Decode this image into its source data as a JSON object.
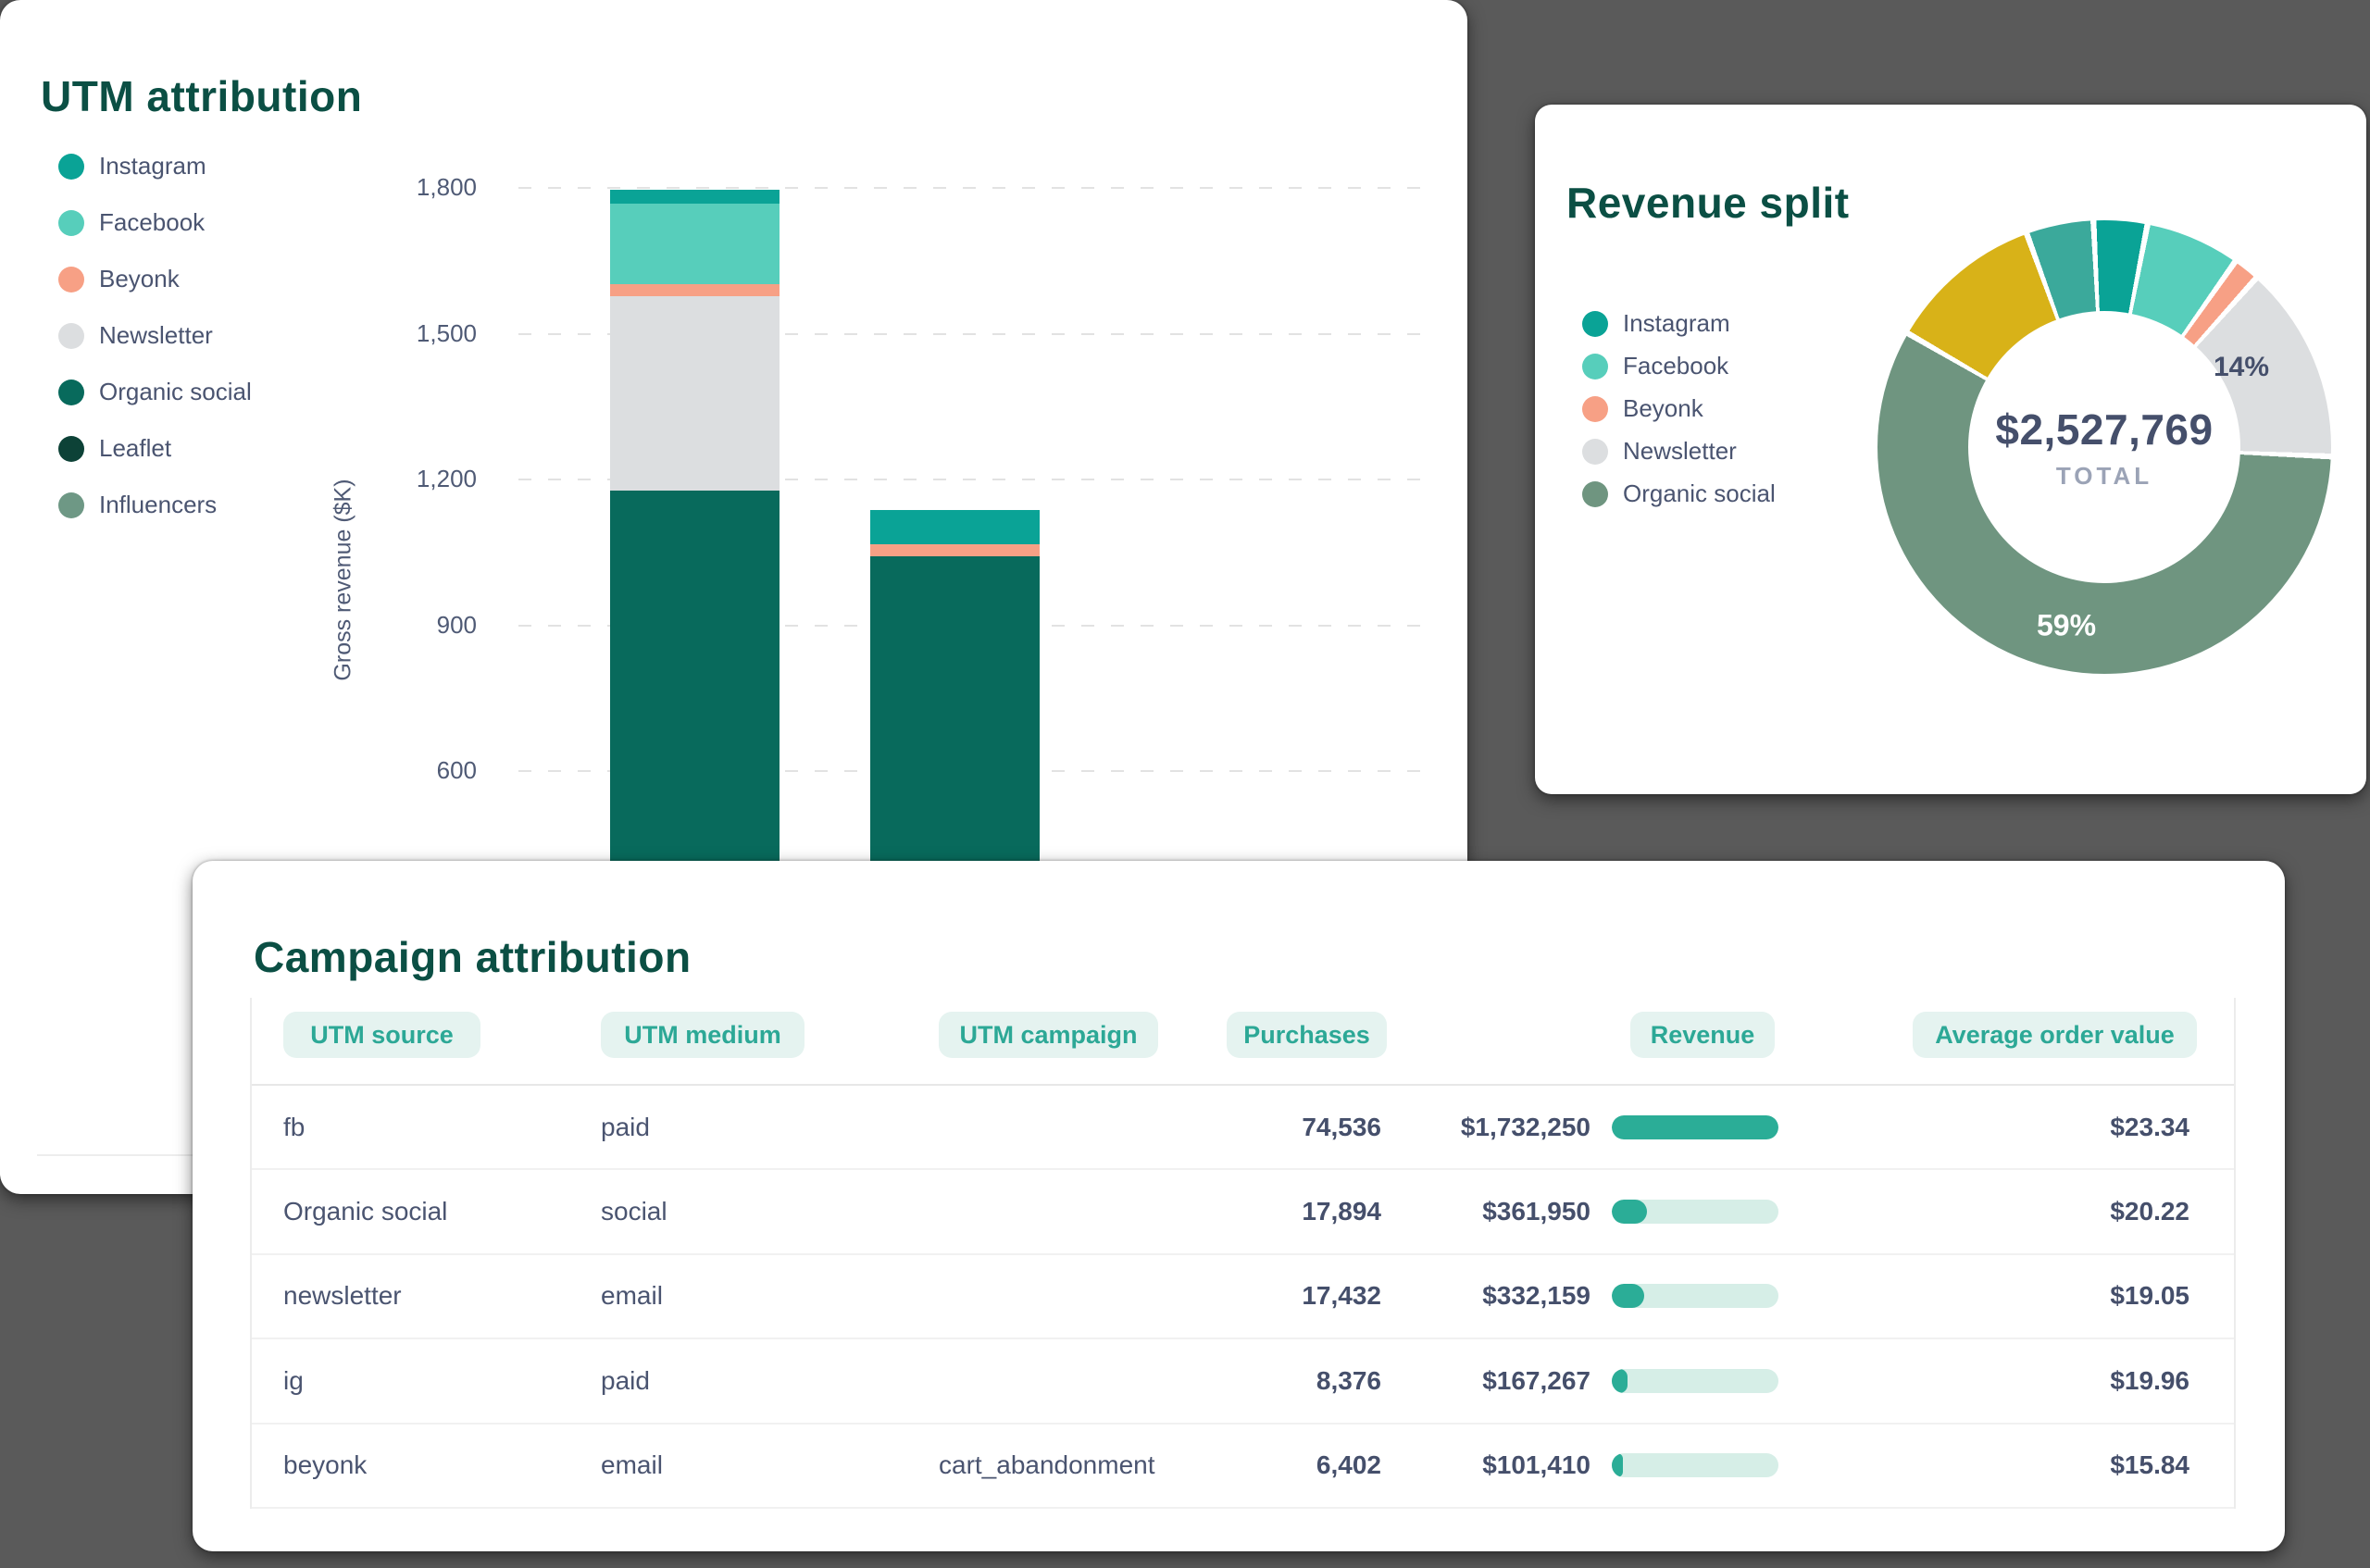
{
  "page": {
    "background_color": "#5A5A5A",
    "card_color": "#FFFFFF",
    "title_color": "#0B4F44",
    "text_color": "#4A5470"
  },
  "utm_card": {
    "title": "UTM attribution",
    "y_axis_label": "Gross revenue ($K)",
    "legend": [
      {
        "label": "Instagram",
        "color": "#0AA396"
      },
      {
        "label": "Facebook",
        "color": "#57CEBB"
      },
      {
        "label": "Beyonk",
        "color": "#F7A085"
      },
      {
        "label": "Newsletter",
        "color": "#DCDEE0"
      },
      {
        "label": "Organic social",
        "color": "#086A5C"
      },
      {
        "label": "Leaflet",
        "color": "#0D4237"
      },
      {
        "label": "Influencers",
        "color": "#6E9885"
      }
    ]
  },
  "revenue_card": {
    "title": "Revenue split",
    "total_value": "$2,527,769",
    "total_label": "TOTAL",
    "legend": [
      {
        "label": "Instagram",
        "color": "#0AA396"
      },
      {
        "label": "Facebook",
        "color": "#57CEBB"
      },
      {
        "label": "Beyonk",
        "color": "#F7A085"
      },
      {
        "label": "Newsletter",
        "color": "#DCDEE0"
      },
      {
        "label": "Organic social",
        "color": "#6F9580"
      }
    ],
    "slice_labels": [
      {
        "text": "14%",
        "segment": "Newsletter"
      },
      {
        "text": "59%",
        "segment": "Organic social"
      }
    ]
  },
  "campaign_card": {
    "title": "Campaign attribution",
    "table": {
      "headers": [
        "UTM source",
        "UTM medium",
        "UTM campaign",
        "Purchases",
        "Revenue",
        "Average order value"
      ],
      "rows": [
        {
          "source": "fb",
          "medium": "paid",
          "campaign": "",
          "purchases": "74,536",
          "revenue": "$1,732,250",
          "revenue_value": 1732250,
          "aov": "$23.34"
        },
        {
          "source": "Organic social",
          "medium": "social",
          "campaign": "",
          "purchases": "17,894",
          "revenue": "$361,950",
          "revenue_value": 361950,
          "aov": "$20.22"
        },
        {
          "source": "newsletter",
          "medium": "email",
          "campaign": "",
          "purchases": "17,432",
          "revenue": "$332,159",
          "revenue_value": 332159,
          "aov": "$19.05"
        },
        {
          "source": "ig",
          "medium": "paid",
          "campaign": "",
          "purchases": "8,376",
          "revenue": "$167,267",
          "revenue_value": 167267,
          "aov": "$19.96"
        },
        {
          "source": "beyonk",
          "medium": "email",
          "campaign": "cart_abandonment",
          "purchases": "6,402",
          "revenue": "$101,410",
          "revenue_value": 101410,
          "aov": "$15.84"
        }
      ],
      "revenue_bar_max": 1732250
    }
  },
  "chart_data": [
    {
      "type": "bar",
      "stacked": true,
      "title": "UTM attribution",
      "xlabel": "",
      "ylabel": "Gross revenue ($K)",
      "yticks": [
        {
          "label": "1,800",
          "value": 1800
        },
        {
          "label": "1,500",
          "value": 1500
        },
        {
          "label": "1,200",
          "value": 1200
        },
        {
          "label": "900",
          "value": 900
        },
        {
          "label": "600",
          "value": 600
        }
      ],
      "grid": true,
      "categories": [
        "",
        ""
      ],
      "note": "x-axis category labels and bar bottoms are occluded by the overlapping Campaign attribution card; values in $K",
      "series": [
        {
          "name": "Organic social",
          "color": "#086A5C",
          "values": [
            1175,
            1040
          ]
        },
        {
          "name": "Newsletter",
          "color": "#DCDEE0",
          "values": [
            400,
            0
          ]
        },
        {
          "name": "Beyonk",
          "color": "#F7A085",
          "values": [
            25,
            25
          ]
        },
        {
          "name": "Facebook",
          "color": "#57CEBB",
          "values": [
            165,
            0
          ]
        },
        {
          "name": "Instagram",
          "color": "#0AA396",
          "values": [
            30,
            70
          ]
        }
      ]
    },
    {
      "type": "pie",
      "subtype": "donut",
      "title": "Revenue split",
      "center_total": "$2,527,769",
      "center_label": "TOTAL",
      "legend_position": "left",
      "segments": [
        {
          "label": "Instagram",
          "pct": 3.5,
          "color": "#0AA396"
        },
        {
          "label": "Facebook",
          "pct": 6.5,
          "color": "#57CEBB"
        },
        {
          "label": "Beyonk",
          "pct": 1.5,
          "color": "#F7A085"
        },
        {
          "label": "Newsletter",
          "pct": 14,
          "color": "#DCDEE0",
          "data_label": "14%"
        },
        {
          "label": "Organic social",
          "pct": 59,
          "color": "#6F9580",
          "data_label": "59%"
        },
        {
          "label": "(unlabeled gold slice)",
          "pct": 11,
          "color": "#D8B218"
        },
        {
          "label": "(unlabeled teal slice)",
          "pct": 4.5,
          "color": "#3BA99B"
        }
      ]
    },
    {
      "type": "table",
      "title": "Campaign attribution",
      "headers": [
        "UTM source",
        "UTM medium",
        "UTM campaign",
        "Purchases",
        "Revenue",
        "Average order value"
      ],
      "rows": [
        [
          "fb",
          "paid",
          "",
          "74,536",
          "$1,732,250",
          "$23.34"
        ],
        [
          "Organic social",
          "social",
          "",
          "17,894",
          "$361,950",
          "$20.22"
        ],
        [
          "newsletter",
          "email",
          "",
          "17,432",
          "$332,159",
          "$19.05"
        ],
        [
          "ig",
          "paid",
          "",
          "8,376",
          "$167,267",
          "$19.96"
        ],
        [
          "beyonk",
          "email",
          "cart_abandonment",
          "6,402",
          "$101,410",
          "$15.84"
        ]
      ]
    }
  ]
}
